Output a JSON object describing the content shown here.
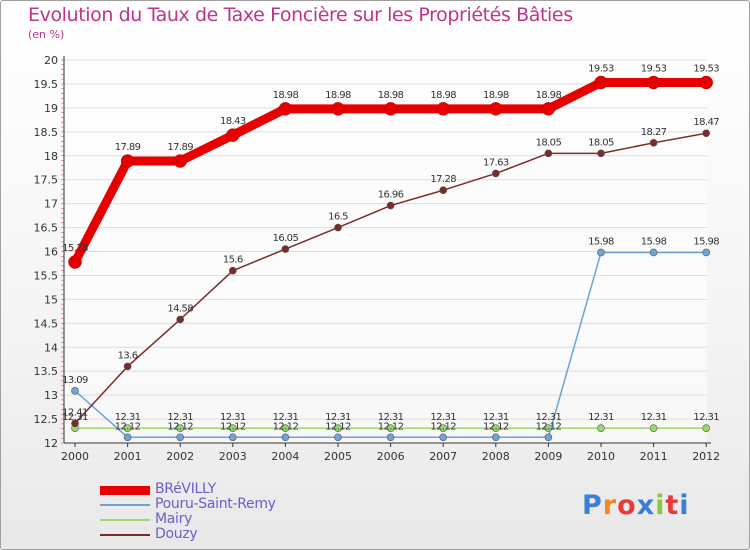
{
  "header": {
    "title": "Evolution du Taux de Taxe Foncière sur les Propriétés Bâties",
    "unit": "(en %)"
  },
  "logo": {
    "text": "Proxiti"
  },
  "colors": {
    "title": "#c0338a",
    "axis": "#333333",
    "grid": "#dddddd",
    "legend_text": "#6a5ec6"
  },
  "chart_data": {
    "type": "line",
    "title": "Evolution du Taux de Taxe Foncière sur les Propriétés Bâties",
    "ylabel": "(en %)",
    "xlabel": "",
    "x": [
      "2000",
      "2001",
      "2002",
      "2003",
      "2004",
      "2005",
      "2006",
      "2007",
      "2008",
      "2009",
      "2010",
      "2011",
      "2012"
    ],
    "ylim": [
      12,
      20
    ],
    "yticks": [
      "12",
      "12.5",
      "13",
      "13.5",
      "14",
      "14.5",
      "15",
      "15.5",
      "16",
      "16.5",
      "17",
      "17.5",
      "18",
      "18.5",
      "19",
      "19.5",
      "20"
    ],
    "grid": true,
    "legend_position": "bottom-left",
    "series": [
      {
        "name": "BRéVILLY",
        "color": "#e80000",
        "values": [
          15.78,
          17.89,
          17.89,
          18.43,
          18.98,
          18.98,
          18.98,
          18.98,
          18.98,
          18.98,
          19.53,
          19.53,
          19.53
        ],
        "labels": [
          "15.78",
          "17.89",
          "17.89",
          "18.43",
          "18.98",
          "18.98",
          "18.98",
          "18.98",
          "18.98",
          "18.98",
          "19.53",
          "19.53",
          "19.53"
        ]
      },
      {
        "name": "Pouru-Saint-Remy",
        "color": "#6ea3d3",
        "values": [
          13.09,
          12.12,
          12.12,
          12.12,
          12.12,
          12.12,
          12.12,
          12.12,
          12.12,
          12.12,
          15.98,
          15.98,
          15.98
        ],
        "labels": [
          "13.09",
          "12.12",
          "12.12",
          "12.12",
          "12.12",
          "12.12",
          "12.12",
          "12.12",
          "12.12",
          "12.12",
          "15.98",
          "15.98",
          "15.98"
        ]
      },
      {
        "name": "Mairy",
        "color": "#99d969",
        "values": [
          12.31,
          12.31,
          12.31,
          12.31,
          12.31,
          12.31,
          12.31,
          12.31,
          12.31,
          12.31,
          12.31,
          12.31,
          12.31
        ],
        "labels": [
          "12.31",
          "12.31",
          "12.31",
          "12.31",
          "12.31",
          "12.31",
          "12.31",
          "12.31",
          "12.31",
          "12.31",
          "12.31",
          "12.31",
          "12.31"
        ]
      },
      {
        "name": "Douzy",
        "color": "#7a2b2b",
        "values": [
          12.41,
          13.6,
          14.58,
          15.6,
          16.05,
          16.5,
          16.96,
          17.28,
          17.63,
          18.05,
          18.05,
          18.27,
          18.47
        ],
        "labels": [
          "12.41",
          "13.6",
          "14.58",
          "15.6",
          "16.05",
          "16.5",
          "16.96",
          "17.28",
          "17.63",
          "18.05",
          "18.05",
          "18.27",
          "18.47"
        ]
      }
    ]
  }
}
